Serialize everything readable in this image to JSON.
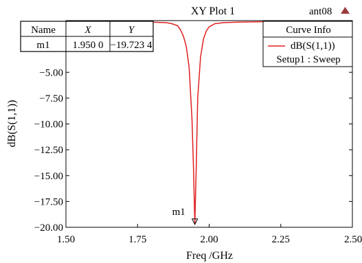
{
  "header": {
    "title": "XY Plot 1",
    "project": "ant08",
    "project_icon": "triangle-up-icon"
  },
  "colors": {
    "curve": "#e02020",
    "arrow": "#9b3b3b",
    "frame": "#000000"
  },
  "marker_table": {
    "headers": [
      "Name",
      "X",
      "Y"
    ],
    "rows": [
      {
        "name": "m1",
        "x": "1.950 0",
        "y": "−19.723 4"
      }
    ]
  },
  "curve_info": {
    "title": "Curve Info",
    "entries": [
      {
        "name": "dB(S(1,1))",
        "setup": "Setup1 : Sweep"
      }
    ]
  },
  "chart_data": {
    "type": "line",
    "title": "XY Plot 1",
    "xlabel": "Freq /GHz",
    "ylabel": "dB(S(1,1))",
    "xlim": [
      1.5,
      2.5
    ],
    "ylim": [
      -20,
      0
    ],
    "x_ticks": [
      1.5,
      1.75,
      2.0,
      2.25,
      2.5
    ],
    "x_tick_labels": [
      "1.50",
      "1.75",
      "2.00",
      "2.25",
      "2.50"
    ],
    "y_ticks": [
      -5,
      -7.5,
      -10,
      -12.5,
      -15,
      -17.5,
      -20
    ],
    "y_tick_labels": [
      "−5.00",
      "−7.50",
      "−10.00",
      "−12.50",
      "−15.00",
      "−17.50",
      "−20.00"
    ],
    "grid": false,
    "legend": "top-right",
    "series": [
      {
        "name": "dB(S(1,1))",
        "x": [
          1.5,
          1.6,
          1.7,
          1.8,
          1.85,
          1.87,
          1.89,
          1.9,
          1.91,
          1.92,
          1.93,
          1.94,
          1.945,
          1.95,
          1.955,
          1.96,
          1.97,
          1.98,
          1.99,
          2.0,
          2.02,
          2.05,
          2.1,
          2.2,
          2.3,
          2.4,
          2.5
        ],
        "y": [
          -0.1,
          -0.1,
          -0.1,
          -0.15,
          -0.2,
          -0.3,
          -0.5,
          -0.9,
          -1.5,
          -2.5,
          -4.5,
          -9.5,
          -14.0,
          -19.72,
          -14.0,
          -7.5,
          -3.5,
          -1.8,
          -1.0,
          -0.6,
          -0.3,
          -0.2,
          -0.15,
          -0.1,
          -0.1,
          -0.1,
          -0.1
        ]
      }
    ],
    "markers": [
      {
        "name": "m1",
        "x": 1.95,
        "y": -19.72
      }
    ]
  }
}
